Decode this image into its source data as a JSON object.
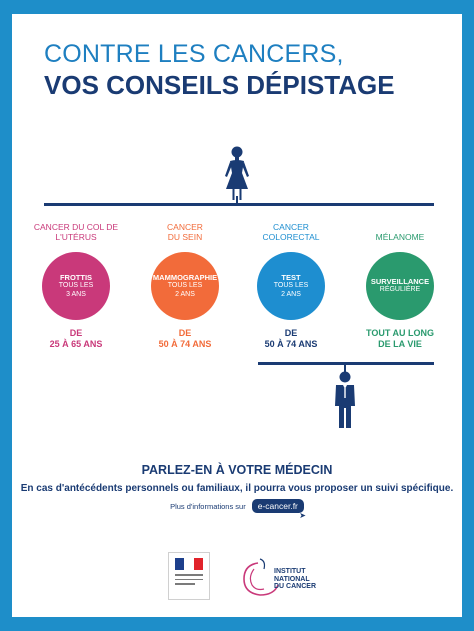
{
  "title": {
    "line1": "CONTRE LES CANCERS,",
    "line2": "VOS CONSEILS DÉPISTAGE"
  },
  "screenings": [
    {
      "category": "CANCER DU COL DE L'UTÉRUS",
      "test": "FROTTIS",
      "frequency": "TOUS LES 3 ANS",
      "age_prefix": "DE",
      "age": "25 À 65 ANS",
      "color": "#c9397a"
    },
    {
      "category": "CANCER DU SEIN",
      "test": "MAMMOGRAPHIE",
      "frequency": "TOUS LES 2 ANS",
      "age_prefix": "DE",
      "age": "50 À 74 ANS",
      "color": "#f26b3a"
    },
    {
      "category": "CANCER COLORECTAL",
      "test": "TEST",
      "frequency": "TOUS LES 2 ANS",
      "age_prefix": "DE",
      "age": "50 À 74 ANS",
      "color": "#1e8ed0"
    },
    {
      "category": "MÉLANOME",
      "test": "SURVEILLANCE",
      "frequency": "RÉGULIÈRE",
      "age_prefix": "TOUT AU LONG",
      "age": "DE LA VIE",
      "color": "#2a9a6e"
    }
  ],
  "cta": {
    "title": "PARLEZ-EN À VOTRE MÉDECIN",
    "text": "En cas d'antécédents personnels ou familiaux, il pourra vous proposer un suivi spécifique.",
    "info_text": "Plus d'informations sur",
    "link": "e-cancer.fr"
  },
  "logos": {
    "inca": "INSTITUT NATIONAL DU CANCER"
  },
  "icons": [
    "woman-icon",
    "man-icon",
    "cursor-icon",
    "republique-francaise-logo",
    "inca-logo"
  ],
  "colors": {
    "frame": "#1e8ec9",
    "navy": "#1a3b73",
    "title_blue": "#1e7fc0"
  }
}
